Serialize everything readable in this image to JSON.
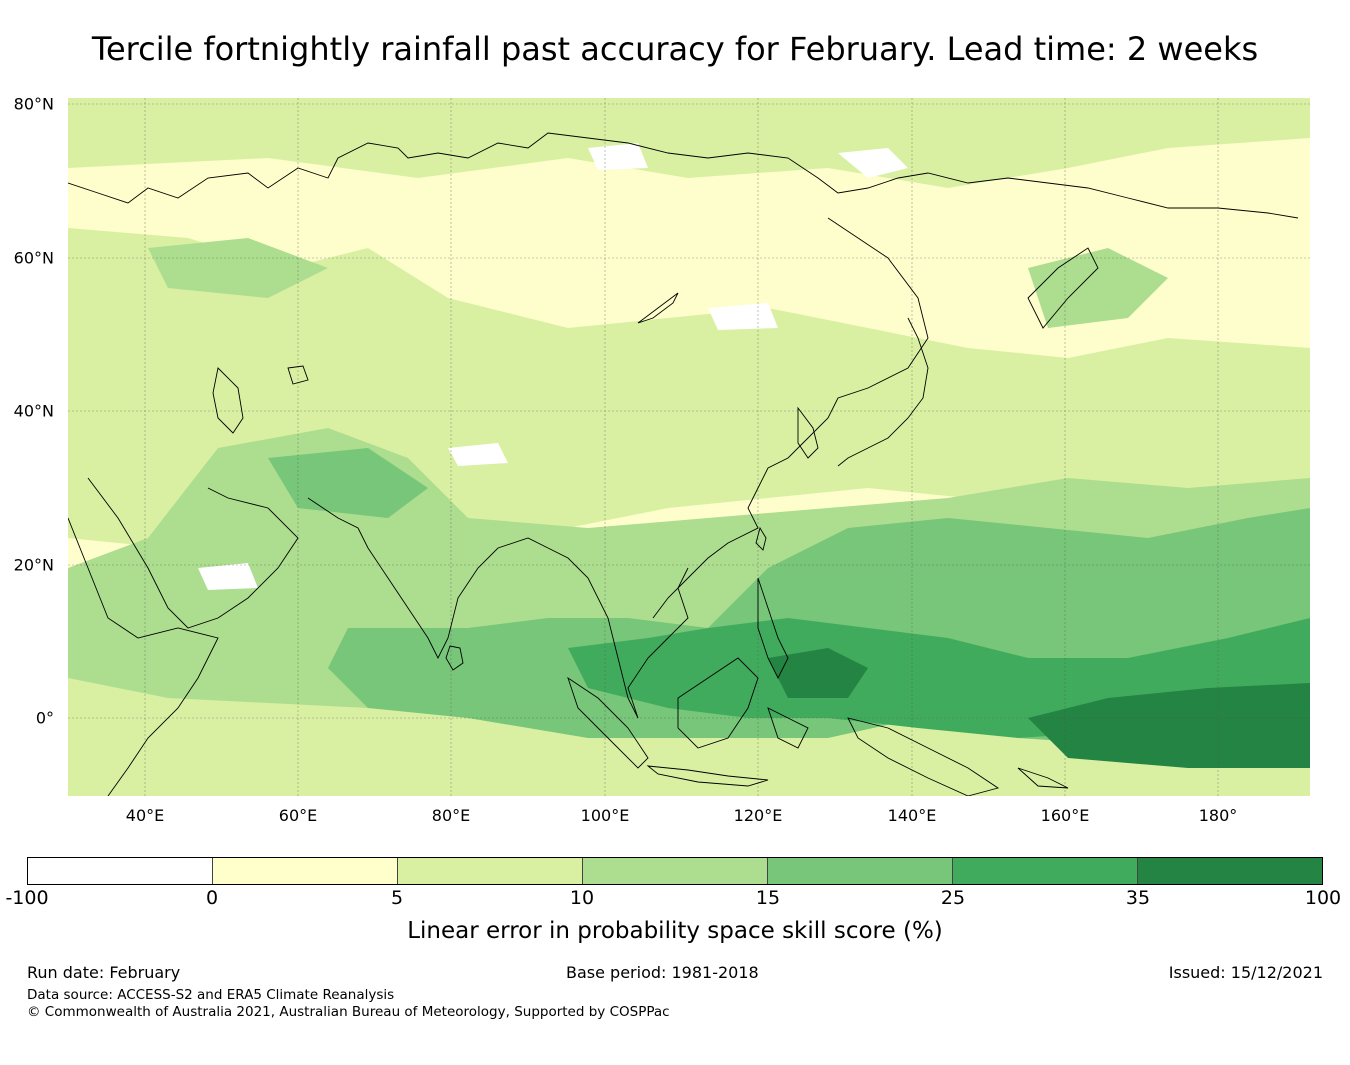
{
  "title": "Tercile fortnightly rainfall past accuracy for February. Lead time: 2 weeks",
  "map": {
    "lat_labels": [
      "80°N",
      "60°N",
      "40°N",
      "20°N",
      "0°"
    ],
    "lon_labels": [
      "40°E",
      "60°E",
      "80°E",
      "100°E",
      "120°E",
      "140°E",
      "160°E",
      "180°"
    ],
    "ocean_base_color": "#fefecc"
  },
  "colorbar": {
    "ticks": [
      "-100",
      "0",
      "5",
      "10",
      "15",
      "25",
      "35",
      "100"
    ],
    "colors": [
      "#ffffff",
      "#ffffcc",
      "#d9f0a3",
      "#addd8e",
      "#78c679",
      "#41ab5d",
      "#238443"
    ],
    "label": "Linear error in probability space skill score (%)"
  },
  "footer": {
    "run_date": "Run date: February",
    "base_period": "Base period: 1981-2018",
    "issued": "Issued: 15/12/2021",
    "data_source": "Data source: ACCESS-S2 and ERA5 Climate Reanalysis",
    "copyright": "© Commonwealth of Australia 2021, Australian Bureau of Meteorology, Supported by COSPPac"
  }
}
